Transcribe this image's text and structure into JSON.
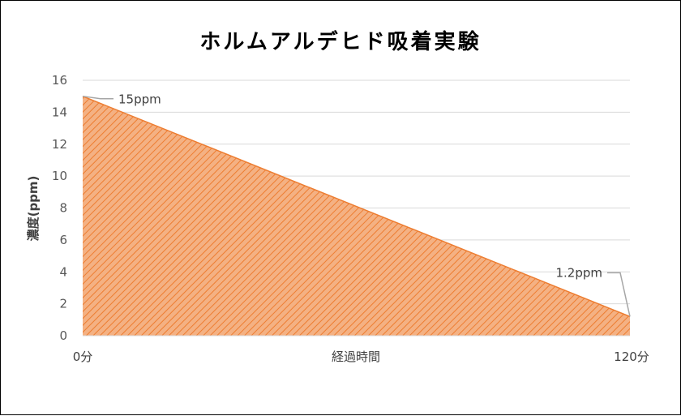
{
  "chart_data": {
    "type": "area",
    "title": "ホルムアルデヒド吸着実験",
    "xlabel": "経過時間",
    "ylabel": "濃度(ppm)",
    "x": [
      0,
      120
    ],
    "x_tick_labels": [
      "0分",
      "120分"
    ],
    "y_ticks": [
      0,
      2,
      4,
      6,
      8,
      10,
      12,
      14,
      16
    ],
    "ylim": [
      0,
      16
    ],
    "series": [
      {
        "values": [
          15,
          1.2
        ]
      }
    ],
    "data_labels": [
      "15ppm",
      "1.2ppm"
    ],
    "fill_color": "#ED7D31",
    "hatch_color": "#F4B183",
    "grid": true
  }
}
